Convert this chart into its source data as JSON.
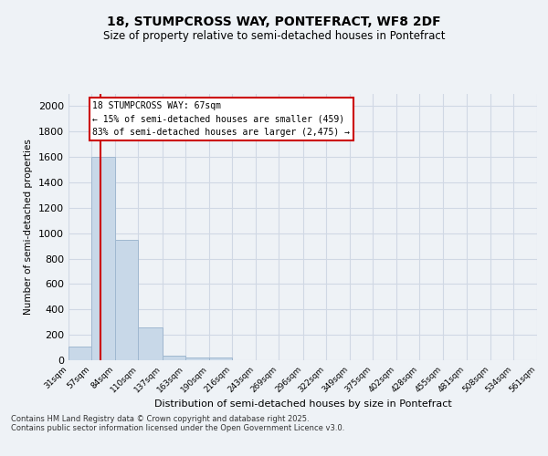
{
  "title1": "18, STUMPCROSS WAY, PONTEFRACT, WF8 2DF",
  "title2": "Size of property relative to semi-detached houses in Pontefract",
  "xlabel": "Distribution of semi-detached houses by size in Pontefract",
  "ylabel": "Number of semi-detached properties",
  "bins": [
    31,
    57,
    84,
    110,
    137,
    163,
    190,
    216,
    243,
    269,
    296,
    322,
    349,
    375,
    402,
    428,
    455,
    481,
    508,
    534,
    561
  ],
  "counts": [
    110,
    1600,
    950,
    255,
    35,
    25,
    20,
    0,
    0,
    0,
    0,
    0,
    0,
    0,
    0,
    0,
    0,
    0,
    0,
    0
  ],
  "bar_color": "#c8d8e8",
  "bar_edgecolor": "#a0b8d0",
  "redline_x": 67,
  "annotation_title": "18 STUMPCROSS WAY: 67sqm",
  "annotation_line1": "← 15% of semi-detached houses are smaller (459)",
  "annotation_line2": "83% of semi-detached houses are larger (2,475) →",
  "annotation_box_color": "#ffffff",
  "annotation_box_edgecolor": "#cc0000",
  "redline_color": "#cc0000",
  "ylim": [
    0,
    2100
  ],
  "yticks": [
    0,
    200,
    400,
    600,
    800,
    1000,
    1200,
    1400,
    1600,
    1800,
    2000
  ],
  "tick_labels": [
    "31sqm",
    "57sqm",
    "84sqm",
    "110sqm",
    "137sqm",
    "163sqm",
    "190sqm",
    "216sqm",
    "243sqm",
    "269sqm",
    "296sqm",
    "322sqm",
    "349sqm",
    "375sqm",
    "402sqm",
    "428sqm",
    "455sqm",
    "481sqm",
    "508sqm",
    "534sqm",
    "561sqm"
  ],
  "footer1": "Contains HM Land Registry data © Crown copyright and database right 2025.",
  "footer2": "Contains public sector information licensed under the Open Government Licence v3.0.",
  "bg_color": "#eef2f6",
  "grid_color": "#d0d8e4"
}
